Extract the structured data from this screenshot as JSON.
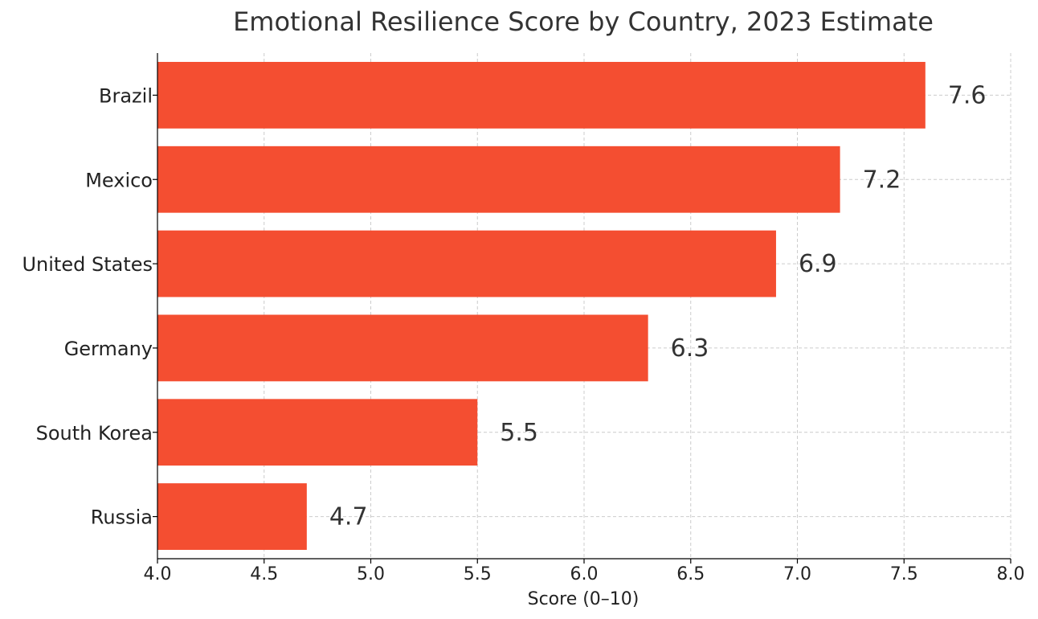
{
  "chart_data": {
    "type": "bar",
    "orientation": "horizontal",
    "title": "Emotional Resilience Score by Country, 2023 Estimate",
    "xlabel": "Score (0–10)",
    "ylabel": "",
    "xlim": [
      4.0,
      8.0
    ],
    "x_ticks": [
      "4.0",
      "4.5",
      "5.0",
      "5.5",
      "6.0",
      "6.5",
      "7.0",
      "7.5",
      "8.0"
    ],
    "categories": [
      "Brazil",
      "Mexico",
      "United States",
      "Germany",
      "South Korea",
      "Russia"
    ],
    "values": [
      7.6,
      7.2,
      6.9,
      6.3,
      5.5,
      4.7
    ],
    "value_labels": [
      "7.6",
      "7.2",
      "6.9",
      "6.3",
      "5.5",
      "4.7"
    ],
    "bar_color": "#f44e31",
    "grid": true
  }
}
